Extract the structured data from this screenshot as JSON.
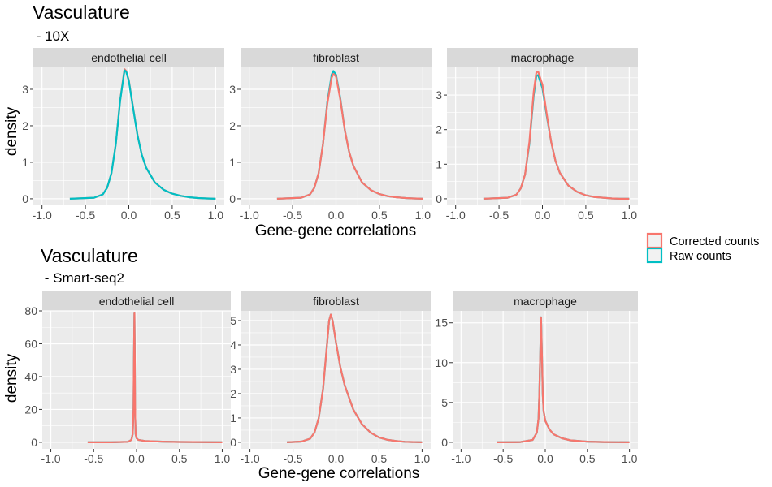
{
  "legend": {
    "items": [
      {
        "label": "Corrected counts",
        "color": "#F8766D"
      },
      {
        "label": "Raw counts",
        "color": "#00BFC4"
      }
    ]
  },
  "chart_data": [
    {
      "type": "line",
      "title": "Vasculature",
      "subtitle": " - 10X",
      "xlabel": "Gene-gene correlations",
      "ylabel": "density",
      "xlim": [
        -1.0,
        1.0
      ],
      "x_ticks": [
        "-1.0",
        "-0.5",
        "0.0",
        "0.5",
        "1.0"
      ],
      "panels": [
        {
          "facet": "endothelial cell",
          "ylim": [
            0,
            3.6
          ],
          "y_ticks": [
            0,
            1,
            2,
            3
          ],
          "series": [
            {
              "name": "Corrected counts",
              "color": "#F8766D",
              "x": [
                -0.68,
                -0.4,
                -0.3,
                -0.25,
                -0.2,
                -0.15,
                -0.1,
                -0.05,
                -0.03,
                0.0,
                0.05,
                0.1,
                0.15,
                0.2,
                0.3,
                0.4,
                0.5,
                0.6,
                0.7,
                0.8,
                0.9,
                1.0
              ],
              "y": [
                0.0,
                0.03,
                0.12,
                0.3,
                0.7,
                1.5,
                2.7,
                3.55,
                3.5,
                3.25,
                2.5,
                1.75,
                1.2,
                0.85,
                0.45,
                0.25,
                0.14,
                0.08,
                0.04,
                0.02,
                0.01,
                0.0
              ]
            },
            {
              "name": "Raw counts",
              "color": "#00BFC4",
              "x": [
                -0.68,
                -0.4,
                -0.3,
                -0.25,
                -0.2,
                -0.15,
                -0.1,
                -0.05,
                -0.03,
                0.0,
                0.05,
                0.1,
                0.15,
                0.2,
                0.3,
                0.4,
                0.5,
                0.6,
                0.7,
                0.8,
                0.9,
                1.0
              ],
              "y": [
                0.0,
                0.03,
                0.12,
                0.3,
                0.7,
                1.5,
                2.68,
                3.52,
                3.48,
                3.23,
                2.48,
                1.74,
                1.2,
                0.85,
                0.45,
                0.25,
                0.14,
                0.08,
                0.04,
                0.02,
                0.01,
                0.0
              ]
            }
          ]
        },
        {
          "facet": "fibroblast",
          "ylim": [
            0,
            3.6
          ],
          "y_ticks": [
            0,
            1,
            2,
            3
          ],
          "series": [
            {
              "name": "Raw counts",
              "color": "#00BFC4",
              "x": [
                -0.68,
                -0.4,
                -0.3,
                -0.25,
                -0.2,
                -0.15,
                -0.1,
                -0.05,
                -0.03,
                0.0,
                0.05,
                0.1,
                0.15,
                0.2,
                0.3,
                0.4,
                0.5,
                0.6,
                0.7,
                0.8,
                0.9,
                1.0
              ],
              "y": [
                0.0,
                0.03,
                0.12,
                0.3,
                0.7,
                1.5,
                2.65,
                3.4,
                3.5,
                3.4,
                2.75,
                1.9,
                1.3,
                0.9,
                0.45,
                0.24,
                0.13,
                0.07,
                0.04,
                0.02,
                0.01,
                0.0
              ]
            },
            {
              "name": "Corrected counts",
              "color": "#F8766D",
              "x": [
                -0.68,
                -0.4,
                -0.3,
                -0.25,
                -0.2,
                -0.15,
                -0.1,
                -0.05,
                -0.03,
                0.0,
                0.05,
                0.1,
                0.15,
                0.2,
                0.3,
                0.4,
                0.5,
                0.6,
                0.7,
                0.8,
                0.9,
                1.0
              ],
              "y": [
                0.0,
                0.03,
                0.12,
                0.3,
                0.7,
                1.5,
                2.6,
                3.32,
                3.42,
                3.35,
                2.72,
                1.9,
                1.3,
                0.9,
                0.45,
                0.24,
                0.13,
                0.07,
                0.04,
                0.02,
                0.01,
                0.0
              ]
            }
          ]
        },
        {
          "facet": "macrophage",
          "ylim": [
            0,
            3.8
          ],
          "y_ticks": [
            0,
            1,
            2,
            3
          ],
          "series": [
            {
              "name": "Raw counts",
              "color": "#00BFC4",
              "x": [
                -0.68,
                -0.4,
                -0.3,
                -0.25,
                -0.2,
                -0.15,
                -0.1,
                -0.07,
                -0.05,
                0.0,
                0.05,
                0.1,
                0.15,
                0.2,
                0.3,
                0.4,
                0.5,
                0.6,
                0.7,
                0.8,
                0.9,
                1.0
              ],
              "y": [
                0.0,
                0.03,
                0.12,
                0.3,
                0.7,
                1.6,
                3.0,
                3.55,
                3.58,
                3.2,
                2.4,
                1.65,
                1.1,
                0.75,
                0.38,
                0.2,
                0.1,
                0.05,
                0.03,
                0.01,
                0.0,
                0.0
              ]
            },
            {
              "name": "Corrected counts",
              "color": "#F8766D",
              "x": [
                -0.68,
                -0.4,
                -0.3,
                -0.25,
                -0.2,
                -0.15,
                -0.1,
                -0.07,
                -0.05,
                0.0,
                0.05,
                0.1,
                0.15,
                0.2,
                0.3,
                0.4,
                0.5,
                0.6,
                0.7,
                0.8,
                0.9,
                1.0
              ],
              "y": [
                0.0,
                0.03,
                0.12,
                0.3,
                0.7,
                1.65,
                3.1,
                3.65,
                3.68,
                3.3,
                2.45,
                1.65,
                1.1,
                0.75,
                0.38,
                0.2,
                0.1,
                0.05,
                0.03,
                0.01,
                0.0,
                0.0
              ]
            }
          ]
        }
      ]
    },
    {
      "type": "line",
      "title": "Vasculature",
      "subtitle": " - Smart-seq2",
      "xlabel": "Gene-gene correlations",
      "ylabel": "density",
      "xlim": [
        -1.0,
        1.0
      ],
      "x_ticks": [
        "-1.0",
        "-0.5",
        "0.0",
        "0.5",
        "1.0"
      ],
      "panels": [
        {
          "facet": "endothelial cell",
          "ylim": [
            0,
            80
          ],
          "y_ticks": [
            0,
            20,
            40,
            60,
            80
          ],
          "series": [
            {
              "name": "Raw counts",
              "color": "#00BFC4",
              "x": [
                -0.57,
                -0.3,
                -0.1,
                -0.06,
                -0.045,
                -0.035,
                -0.03,
                -0.025,
                -0.02,
                -0.015,
                -0.01,
                0.0,
                0.02,
                0.1,
                0.3,
                0.5,
                1.0
              ],
              "y": [
                0.0,
                0.0,
                0.3,
                1.5,
                5,
                20,
                50,
                78.5,
                50,
                15,
                5,
                2.5,
                1.5,
                0.8,
                0.4,
                0.2,
                0.0
              ]
            },
            {
              "name": "Corrected counts",
              "color": "#F8766D",
              "x": [
                -0.57,
                -0.3,
                -0.1,
                -0.06,
                -0.045,
                -0.035,
                -0.03,
                -0.025,
                -0.02,
                -0.015,
                -0.01,
                0.0,
                0.02,
                0.1,
                0.3,
                0.5,
                1.0
              ],
              "y": [
                0.0,
                0.0,
                0.3,
                1.5,
                5,
                20,
                50,
                78.5,
                50,
                15,
                5,
                2.5,
                1.5,
                0.8,
                0.4,
                0.2,
                0.0
              ]
            }
          ]
        },
        {
          "facet": "fibroblast",
          "ylim": [
            0,
            5.4
          ],
          "y_ticks": [
            0,
            1,
            2,
            3,
            4,
            5
          ],
          "series": [
            {
              "name": "Raw counts",
              "color": "#00BFC4",
              "x": [
                -0.57,
                -0.4,
                -0.3,
                -0.25,
                -0.2,
                -0.15,
                -0.1,
                -0.08,
                -0.06,
                -0.04,
                0.0,
                0.05,
                0.1,
                0.2,
                0.3,
                0.4,
                0.5,
                0.6,
                0.7,
                0.8,
                1.0
              ],
              "y": [
                0.0,
                0.03,
                0.15,
                0.4,
                1.0,
                2.2,
                4.2,
                5.0,
                5.25,
                5.0,
                4.1,
                3.1,
                2.35,
                1.35,
                0.75,
                0.4,
                0.2,
                0.1,
                0.05,
                0.02,
                0.0
              ]
            },
            {
              "name": "Corrected counts",
              "color": "#F8766D",
              "x": [
                -0.57,
                -0.4,
                -0.3,
                -0.25,
                -0.2,
                -0.15,
                -0.1,
                -0.08,
                -0.06,
                -0.04,
                0.0,
                0.05,
                0.1,
                0.2,
                0.3,
                0.4,
                0.5,
                0.6,
                0.7,
                0.8,
                1.0
              ],
              "y": [
                0.0,
                0.03,
                0.15,
                0.4,
                1.0,
                2.2,
                4.2,
                5.0,
                5.25,
                5.0,
                4.1,
                3.1,
                2.35,
                1.35,
                0.75,
                0.4,
                0.2,
                0.1,
                0.05,
                0.02,
                0.0
              ]
            }
          ]
        },
        {
          "facet": "macrophage",
          "ylim": [
            0,
            16.5
          ],
          "y_ticks": [
            0,
            5,
            10,
            15
          ],
          "series": [
            {
              "name": "Raw counts",
              "color": "#00BFC4",
              "x": [
                -0.57,
                -0.3,
                -0.15,
                -0.1,
                -0.08,
                -0.07,
                -0.06,
                -0.05,
                -0.04,
                -0.03,
                -0.02,
                0.0,
                0.05,
                0.1,
                0.2,
                0.3,
                0.5,
                0.7,
                1.0
              ],
              "y": [
                0.0,
                0.02,
                0.3,
                1.2,
                3.0,
                6.0,
                11.0,
                15.7,
                11.0,
                6.0,
                4.0,
                2.7,
                1.6,
                1.0,
                0.5,
                0.25,
                0.08,
                0.03,
                0.0
              ]
            },
            {
              "name": "Corrected counts",
              "color": "#F8766D",
              "x": [
                -0.57,
                -0.3,
                -0.15,
                -0.1,
                -0.08,
                -0.07,
                -0.06,
                -0.05,
                -0.04,
                -0.03,
                -0.02,
                0.0,
                0.05,
                0.1,
                0.2,
                0.3,
                0.5,
                0.7,
                1.0
              ],
              "y": [
                0.0,
                0.02,
                0.3,
                1.2,
                3.0,
                6.0,
                11.0,
                15.7,
                11.0,
                6.0,
                4.0,
                2.7,
                1.6,
                1.0,
                0.5,
                0.25,
                0.08,
                0.03,
                0.0
              ]
            }
          ]
        }
      ]
    }
  ]
}
